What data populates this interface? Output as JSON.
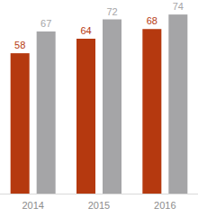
{
  "chart_data": {
    "type": "bar",
    "categories": [
      "2014",
      "2015",
      "2016"
    ],
    "series": [
      {
        "color": "#b5390f",
        "values": [
          58,
          64,
          68
        ]
      },
      {
        "color": "#a5a5a7",
        "values": [
          67,
          72,
          74
        ]
      }
    ],
    "ylim": [
      0,
      80
    ],
    "data_labels": true,
    "tick_labels": "x"
  }
}
